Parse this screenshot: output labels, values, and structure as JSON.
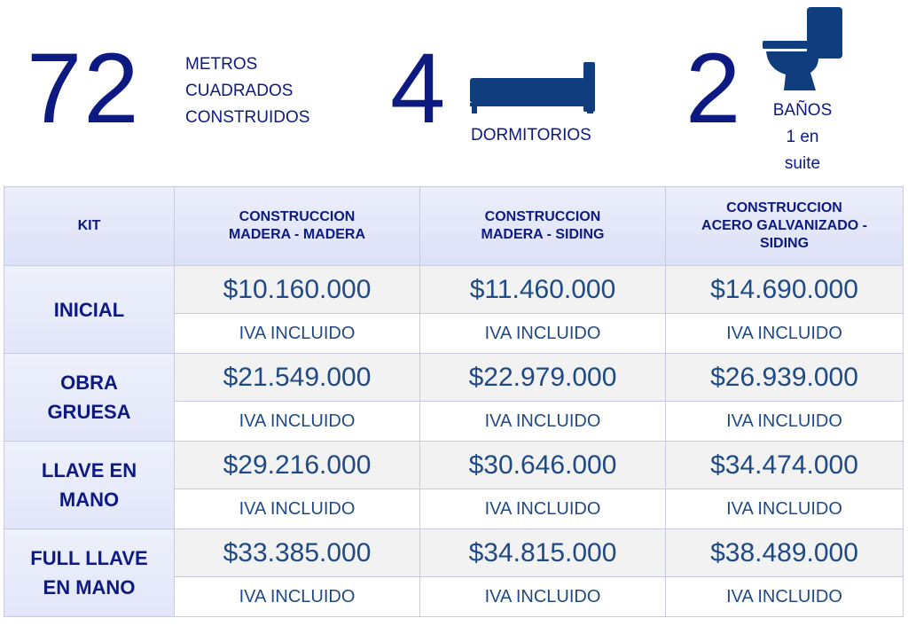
{
  "stats": {
    "area": {
      "value": "72",
      "label_lines": [
        "METROS",
        "CUADRADOS",
        "CONSTRUIDOS"
      ]
    },
    "bedrooms": {
      "value": "4",
      "label": "DORMITORIOS",
      "icon": "bed-icon"
    },
    "bathrooms": {
      "value": "2",
      "label_lines": [
        "BAÑOS",
        "1 en",
        "suite"
      ],
      "icon": "toilet-icon"
    }
  },
  "colors": {
    "primary": "#0c1a82",
    "price_text": "#1f4a86",
    "icon": "#0f3d7d"
  },
  "table": {
    "headers": [
      [
        "KIT"
      ],
      [
        "CONSTRUCCION",
        "MADERA - MADERA"
      ],
      [
        "CONSTRUCCION",
        "MADERA - SIDING"
      ],
      [
        "CONSTRUCCION",
        "ACERO GALVANIZADO -",
        "SIDING"
      ]
    ],
    "rows": [
      {
        "kit_lines": [
          "INICIAL"
        ],
        "prices": [
          "$10.160.000",
          "$11.460.000",
          "$14.690.000"
        ],
        "note": "IVA INCLUIDO"
      },
      {
        "kit_lines": [
          "OBRA",
          "GRUESA"
        ],
        "prices": [
          "$21.549.000",
          "$22.979.000",
          "$26.939.000"
        ],
        "note": "IVA INCLUIDO"
      },
      {
        "kit_lines": [
          "LLAVE EN",
          "MANO"
        ],
        "prices": [
          "$29.216.000",
          "$30.646.000",
          "$34.474.000"
        ],
        "note": "IVA INCLUIDO"
      },
      {
        "kit_lines": [
          "FULL LLAVE",
          "EN MANO"
        ],
        "prices": [
          "$33.385.000",
          "$34.815.000",
          "$38.489.000"
        ],
        "note": "IVA INCLUIDO"
      }
    ]
  }
}
